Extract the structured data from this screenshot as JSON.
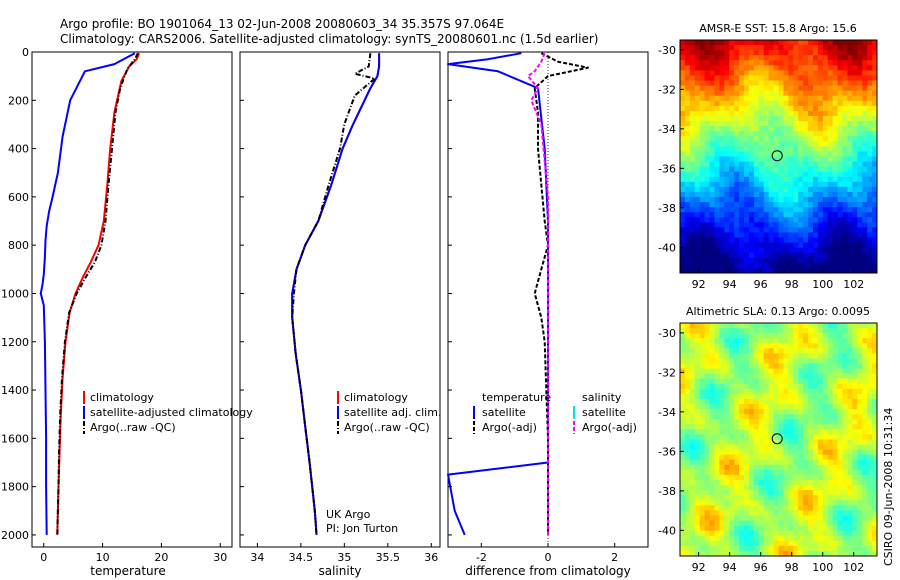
{
  "header": {
    "line1": "Argo profile: BO 1901064_13 02-Jun-2008 20080603_34 35.357S 97.064E",
    "line2": "Climatology: CARS2006. Satellite-adjusted climatology: synTS_20080601.nc (1.5d earlier)"
  },
  "side_text": "CSIRO 09-Jun-2008 10:31:34",
  "colors": {
    "climatology": "#ff0000",
    "satellite": "#0000ff",
    "argo": "#000000",
    "sat_salinity": "#00e5e5",
    "argo_adj_salinity": "#ff00ff"
  },
  "chart_data": [
    {
      "type": "line",
      "name": "temperature-profile",
      "xlabel": "temperature",
      "ylabel": "",
      "xlim": [
        -2,
        32
      ],
      "ylim": [
        2050,
        0
      ],
      "xticks": [
        0,
        10,
        20,
        30
      ],
      "yticks": [
        0,
        200,
        400,
        600,
        800,
        1000,
        1200,
        1400,
        1600,
        1800,
        2000
      ],
      "legend": [
        "climatology",
        "satellite-adjusted climatology",
        "Argo(..raw -QC)"
      ],
      "legend_placement": "lower-right",
      "series": [
        {
          "name": "climatology",
          "color": "#ff0000",
          "style": "solid",
          "x": [
            16.2,
            15.8,
            14.5,
            13.2,
            12.0,
            11.3,
            10.8,
            10.2,
            9.3,
            8.0,
            6.7,
            5.4,
            4.4,
            3.7,
            3.2,
            2.9,
            2.7,
            2.5,
            2.4,
            2.3
          ],
          "y": [
            5,
            30,
            60,
            120,
            250,
            400,
            550,
            700,
            800,
            870,
            930,
            1000,
            1080,
            1200,
            1350,
            1500,
            1650,
            1800,
            1900,
            2000
          ]
        },
        {
          "name": "satellite-adjusted climatology",
          "color": "#0000ff",
          "style": "solid",
          "x": [
            15.5,
            12.0,
            7.0,
            4.5,
            3.2,
            2.4,
            1.5,
            0.9,
            0.5,
            0.3,
            0.2,
            0.0,
            -0.2,
            -0.5,
            0.0,
            0.2,
            0.3,
            0.4,
            0.4,
            0.5
          ],
          "y": [
            5,
            50,
            80,
            200,
            350,
            500,
            600,
            660,
            720,
            780,
            850,
            920,
            960,
            1000,
            1050,
            1200,
            1400,
            1600,
            1800,
            2000
          ]
        },
        {
          "name": "Argo(..raw -QC)",
          "color": "#000000",
          "style": "dashdot",
          "x": [
            16.0,
            15.5,
            14.2,
            13.0,
            12.2,
            11.6,
            11.0,
            10.5,
            9.8,
            8.7,
            7.2,
            5.6,
            4.3,
            3.6,
            3.1,
            2.8,
            2.6,
            2.5,
            2.4,
            2.3
          ],
          "y": [
            5,
            30,
            70,
            150,
            250,
            400,
            550,
            700,
            800,
            870,
            930,
            1000,
            1080,
            1200,
            1350,
            1500,
            1650,
            1800,
            1900,
            2000
          ]
        }
      ]
    },
    {
      "type": "line",
      "name": "salinity-profile",
      "xlabel": "salinity",
      "ylabel": "",
      "xlim": [
        33.8,
        36.1
      ],
      "ylim": [
        2050,
        0
      ],
      "xticks": [
        34,
        34.5,
        35,
        35.5,
        36
      ],
      "legend": [
        "climatology",
        "satellite adj. clim.",
        "Argo(..raw -QC)"
      ],
      "legend_placement": "lower-right",
      "annotations": [
        "UK Argo",
        "PI: Jon Turton"
      ],
      "series": [
        {
          "name": "climatology",
          "color": "#ff0000",
          "style": "solid",
          "x": [
            35.4,
            35.4,
            35.38,
            35.3,
            35.1,
            34.98,
            34.85,
            34.7,
            34.55,
            34.45,
            34.4,
            34.4,
            34.44,
            34.5,
            34.55,
            34.6,
            34.63,
            34.66,
            34.67,
            34.68
          ],
          "y": [
            5,
            60,
            100,
            150,
            300,
            400,
            550,
            700,
            800,
            900,
            1000,
            1100,
            1250,
            1400,
            1550,
            1700,
            1800,
            1900,
            1950,
            2000
          ]
        },
        {
          "name": "satellite adj. clim.",
          "color": "#0000ff",
          "style": "solid",
          "x": [
            35.4,
            35.4,
            35.38,
            35.3,
            35.1,
            34.98,
            34.85,
            34.7,
            34.55,
            34.45,
            34.4,
            34.4,
            34.44,
            34.5,
            34.55,
            34.6,
            34.63,
            34.66,
            34.67,
            34.68
          ],
          "y": [
            5,
            60,
            100,
            150,
            300,
            400,
            550,
            700,
            800,
            900,
            1000,
            1100,
            1250,
            1400,
            1550,
            1700,
            1800,
            1900,
            1950,
            2000
          ]
        },
        {
          "name": "Argo(..raw -QC)",
          "color": "#000000",
          "style": "dashdot",
          "x": [
            35.3,
            35.28,
            35.12,
            35.35,
            35.12,
            35.0,
            34.95,
            34.82,
            34.7,
            34.55,
            34.45,
            34.42,
            34.4,
            34.44,
            34.5,
            34.55,
            34.6,
            34.63,
            34.66,
            34.67,
            34.68
          ],
          "y": [
            5,
            60,
            90,
            110,
            180,
            300,
            400,
            550,
            700,
            800,
            900,
            1000,
            1100,
            1250,
            1400,
            1550,
            1700,
            1800,
            1900,
            1950,
            2000
          ]
        }
      ]
    },
    {
      "type": "line",
      "name": "difference-profile",
      "xlabel": "difference from climatology",
      "ylabel": "",
      "xlim": [
        -3,
        3
      ],
      "ylim": [
        2050,
        0
      ],
      "xticks": [
        -2,
        0,
        2
      ],
      "legend": [
        "temperature",
        "satellite",
        "Argo(-adj)",
        "salinity",
        "satellite",
        "Argo(-adj)"
      ],
      "legend_placement": "lower-right",
      "series": [
        {
          "name": "satellite (temperature)",
          "color": "#0000ff",
          "style": "solid",
          "x": [
            -0.8,
            -1.8,
            -3.0,
            -1.5,
            -0.3,
            -0.1,
            0.0,
            0.0,
            0.0,
            0.0,
            0.0,
            -3.0,
            -2.8,
            -2.5
          ],
          "y": [
            5,
            30,
            50,
            80,
            150,
            400,
            700,
            1000,
            1300,
            1600,
            1700,
            1750,
            1900,
            2000
          ]
        },
        {
          "name": "Argo(-adj) (temperature)",
          "color": "#000000",
          "style": "dash",
          "x": [
            -0.2,
            0.3,
            1.2,
            0.0,
            -0.4,
            -0.3,
            -0.3,
            -0.2,
            -0.1,
            0.0,
            -0.2,
            -0.4,
            -0.2,
            -0.1,
            -0.05,
            0.0,
            0.0,
            0.0
          ],
          "y": [
            5,
            40,
            65,
            100,
            150,
            250,
            400,
            550,
            700,
            800,
            900,
            1000,
            1100,
            1200,
            1400,
            1600,
            1800,
            2000
          ]
        },
        {
          "name": "Argo(-adj) (salinity)",
          "color": "#ff00ff",
          "style": "dash",
          "x": [
            -0.1,
            -0.2,
            -0.4,
            -0.6,
            -0.3,
            -0.5,
            -0.2,
            -0.1,
            0.0,
            0.0,
            0.0,
            0.0
          ],
          "y": [
            5,
            40,
            80,
            100,
            150,
            200,
            300,
            450,
            600,
            800,
            1200,
            2000
          ]
        }
      ]
    },
    {
      "type": "heatmap",
      "name": "sst-map",
      "title": "AMSR-E SST: 15.8 Argo: 15.6",
      "xlim": [
        90.8,
        103.5
      ],
      "ylim": [
        -41.3,
        -29.5
      ],
      "xticks": [
        92,
        94,
        96,
        98,
        100,
        102
      ],
      "yticks": [
        -30,
        -32,
        -34,
        -36,
        -38,
        -40
      ],
      "marker": {
        "lon": 97.064,
        "lat": -35.357
      },
      "colormap": "jet"
    },
    {
      "type": "heatmap",
      "name": "sla-map",
      "title": "Altimetric SLA: 0.13 Argo: 0.0095",
      "xlim": [
        90.8,
        103.5
      ],
      "ylim": [
        -41.3,
        -29.5
      ],
      "xticks": [
        92,
        94,
        96,
        98,
        100,
        102
      ],
      "yticks": [
        -30,
        -32,
        -34,
        -36,
        -38,
        -40
      ],
      "marker": {
        "lon": 97.064,
        "lat": -35.357
      },
      "colormap": "jet"
    }
  ]
}
